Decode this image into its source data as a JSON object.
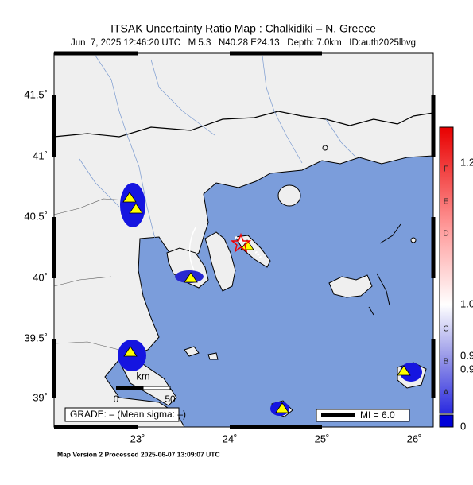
{
  "header": {
    "title": "ITSAK Uncertainty Ratio Map : Chalkidiki – N. Greece",
    "subtitle": "Jun  7, 2025 12:46:20 UTC   M 5.3   N40.28 E24.13   Depth: 7.0km   ID:auth2025lbvg"
  },
  "map": {
    "lat_labels": [
      "41.5˚",
      "41˚",
      "40.5˚",
      "40˚",
      "39.5˚",
      "39˚"
    ],
    "lon_labels": [
      "23˚",
      "24˚",
      "25˚",
      "26˚"
    ],
    "scale": {
      "unit": "km",
      "start": "0",
      "end": "50"
    },
    "grade": "GRADE: – (Mean sigma: –)",
    "legend": "MI = 6.0"
  },
  "colorbar": {
    "grades": [
      "F",
      "E",
      "D",
      "C",
      "B",
      "A"
    ],
    "labels": [
      "1.2",
      "1.0",
      "0.9",
      "0.9",
      "0"
    ]
  },
  "footer": "Map Version 2 Processed 2025-06-07 13:09:07 UTC"
}
